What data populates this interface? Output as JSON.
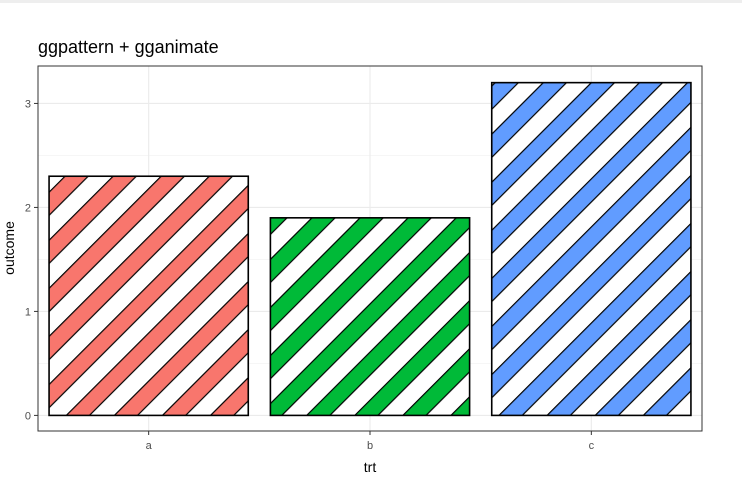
{
  "chart_data": {
    "type": "bar",
    "title": "ggpattern + gganimate",
    "xlabel": "trt",
    "ylabel": "outcome",
    "categories": [
      "a",
      "b",
      "c"
    ],
    "values": [
      2.3,
      1.9,
      3.2
    ],
    "colors": [
      "#F8766D",
      "#00BA38",
      "#619CFF"
    ],
    "pattern": "stripe",
    "ylim": [
      -0.15,
      3.36
    ],
    "yticks": [
      0,
      1,
      2,
      3
    ],
    "grid": true
  }
}
